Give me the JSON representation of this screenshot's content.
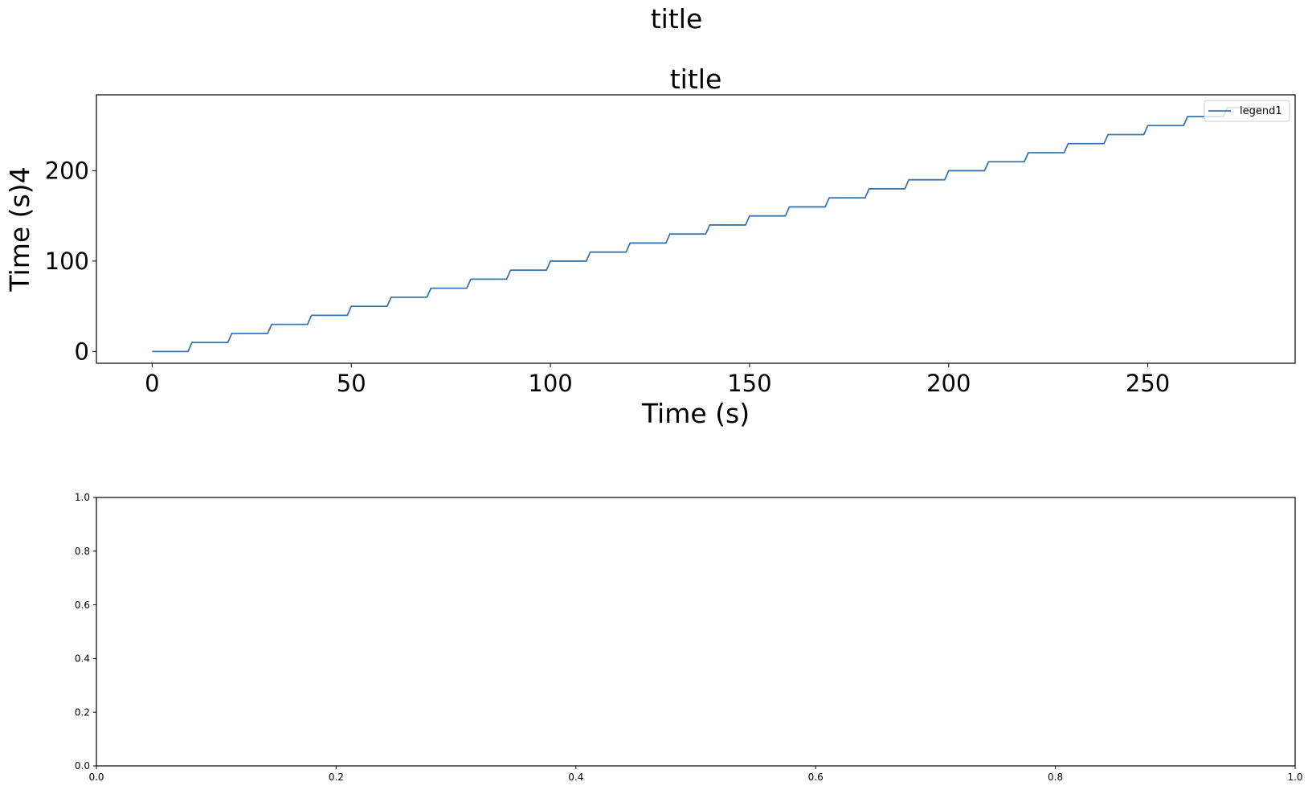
{
  "figure": {
    "suptitle": "title"
  },
  "chart_data": [
    {
      "type": "line",
      "title": "title",
      "xlabel": "Time (s)",
      "ylabel": "Time (s)4",
      "xlim": [
        -14,
        287
      ],
      "ylim": [
        -13,
        284
      ],
      "xticks": [
        0,
        50,
        100,
        150,
        200,
        250
      ],
      "yticks": [
        0,
        100,
        200
      ],
      "grid": false,
      "legend_position": "upper right",
      "series": [
        {
          "name": "legend1",
          "color": "#3b75af",
          "step": 10,
          "x": [
            0,
            9,
            10,
            19,
            20,
            29,
            30,
            39,
            40,
            49,
            50,
            59,
            60,
            69,
            70,
            79,
            80,
            89,
            90,
            99,
            100,
            109,
            110,
            119,
            120,
            129,
            130,
            139,
            140,
            149,
            150,
            159,
            160,
            169,
            170,
            179,
            180,
            189,
            190,
            199,
            200,
            209,
            210,
            219,
            220,
            229,
            230,
            239,
            240,
            249,
            250,
            259,
            260,
            269,
            270,
            279
          ],
          "y": [
            0,
            0,
            10,
            10,
            20,
            20,
            30,
            30,
            40,
            40,
            50,
            50,
            60,
            60,
            70,
            70,
            80,
            80,
            90,
            90,
            100,
            100,
            110,
            110,
            120,
            120,
            130,
            130,
            140,
            140,
            150,
            150,
            160,
            160,
            170,
            170,
            180,
            180,
            190,
            190,
            200,
            200,
            210,
            210,
            220,
            220,
            230,
            230,
            240,
            240,
            250,
            250,
            260,
            260,
            270,
            270
          ]
        }
      ]
    },
    {
      "type": "line",
      "title": "",
      "xlabel": "",
      "ylabel": "",
      "xlim": [
        0,
        1
      ],
      "ylim": [
        0,
        1
      ],
      "xticks": [
        0.0,
        0.2,
        0.4,
        0.6,
        0.8,
        1.0
      ],
      "yticks": [
        0.0,
        0.2,
        0.4,
        0.6,
        0.8,
        1.0
      ],
      "tick_labels_x": [
        "0.0",
        "0.2",
        "0.4",
        "0.6",
        "0.8",
        "1.0"
      ],
      "tick_labels_y": [
        "0.0",
        "0.2",
        "0.4",
        "0.6",
        "0.8",
        "1.0"
      ],
      "grid": false,
      "series": []
    }
  ]
}
